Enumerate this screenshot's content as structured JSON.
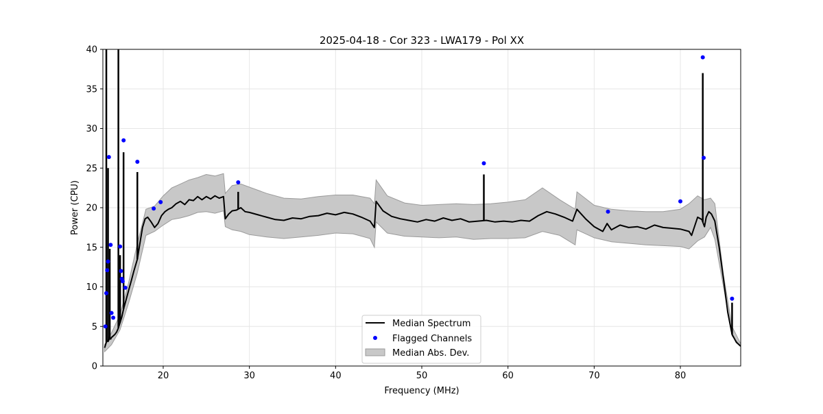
{
  "chart_data": {
    "type": "line",
    "title": "2025-04-18 - Cor 323 - LWA179 - Pol XX",
    "xlabel": "Frequency (MHz)",
    "ylabel": "Power (CPU)",
    "xlim": [
      13,
      87
    ],
    "ylim": [
      0,
      40
    ],
    "xticks": [
      20,
      30,
      40,
      50,
      60,
      70,
      80
    ],
    "yticks": [
      0,
      5,
      10,
      15,
      20,
      25,
      30,
      35,
      40
    ],
    "grid": true,
    "legend_position": "lower center",
    "colors": {
      "median": "#000000",
      "flagged": "#0000ff",
      "mad_fill": "#c8c8c8",
      "mad_edge": "#9a9a9a",
      "grid": "#e6e6e6"
    },
    "legend": [
      {
        "label": "Median Spectrum",
        "kind": "line"
      },
      {
        "label": "Flagged Channels",
        "kind": "marker"
      },
      {
        "label": "Median Abs. Dev.",
        "kind": "patch"
      }
    ],
    "median_spectrum": {
      "x": [
        13.2,
        13.4,
        13.5,
        13.6,
        13.7,
        13.8,
        13.9,
        14.0,
        14.2,
        14.4,
        14.6,
        14.8,
        15.0,
        15.2,
        15.4,
        15.6,
        15.8,
        16.0,
        16.3,
        16.6,
        17.0,
        17.3,
        17.6,
        17.9,
        18.2,
        18.6,
        19.0,
        19.4,
        19.8,
        20.2,
        20.6,
        21.0,
        21.5,
        22.0,
        22.5,
        23.0,
        23.5,
        24.0,
        24.5,
        25.0,
        25.5,
        26.0,
        26.5,
        27.0,
        27.2,
        27.6,
        28.0,
        28.5,
        29.0,
        29.5,
        30.0,
        31.0,
        32.0,
        33.0,
        34.0,
        35.0,
        36.0,
        37.0,
        38.0,
        39.0,
        40.0,
        41.0,
        42.0,
        43.0,
        44.0,
        44.5,
        44.7,
        45.5,
        46.5,
        47.5,
        48.5,
        49.5,
        50.5,
        51.5,
        52.5,
        53.5,
        54.5,
        55.5,
        56.5,
        57.5,
        58.5,
        59.5,
        60.5,
        61.5,
        62.5,
        63.5,
        64.5,
        65.5,
        66.5,
        67.5,
        68.0,
        69.0,
        70.0,
        71.0,
        71.5,
        72.0,
        73.0,
        74.0,
        75.0,
        76.0,
        77.0,
        78.0,
        79.0,
        80.0,
        81.0,
        81.3,
        82.0,
        82.5,
        82.8,
        83.0,
        83.3,
        83.6,
        84.0,
        84.5,
        85.0,
        85.5,
        86.0,
        86.5,
        87.0
      ],
      "y": [
        2.3,
        3.0,
        3.2,
        3.1,
        3.3,
        3.5,
        3.4,
        3.6,
        3.8,
        4.0,
        4.3,
        4.8,
        5.5,
        6.2,
        7.2,
        8.0,
        8.8,
        9.6,
        10.8,
        12.0,
        13.5,
        15.5,
        17.5,
        18.6,
        18.8,
        18.2,
        17.5,
        18.0,
        19.0,
        19.5,
        19.8,
        20.0,
        20.5,
        20.8,
        20.4,
        21.0,
        20.9,
        21.4,
        21.0,
        21.4,
        21.1,
        21.5,
        21.2,
        21.4,
        18.6,
        19.2,
        19.6,
        19.7,
        20.0,
        19.5,
        19.4,
        19.1,
        18.8,
        18.5,
        18.4,
        18.7,
        18.6,
        18.9,
        19.0,
        19.3,
        19.1,
        19.4,
        19.2,
        18.8,
        18.3,
        17.5,
        20.8,
        19.6,
        18.9,
        18.6,
        18.4,
        18.2,
        18.5,
        18.3,
        18.7,
        18.4,
        18.6,
        18.2,
        18.3,
        18.4,
        18.2,
        18.3,
        18.2,
        18.4,
        18.3,
        19.0,
        19.5,
        19.2,
        18.8,
        18.3,
        19.8,
        18.6,
        17.6,
        17.0,
        18.0,
        17.2,
        17.8,
        17.5,
        17.6,
        17.3,
        17.8,
        17.5,
        17.4,
        17.3,
        17.0,
        16.5,
        18.8,
        18.5,
        17.6,
        18.8,
        19.5,
        19.2,
        18.3,
        15.0,
        11.0,
        6.8,
        4.0,
        3.0,
        2.5
      ],
      "spikes": [
        {
          "x": 13.4,
          "y": 40.0
        },
        {
          "x": 13.6,
          "y": 25.0
        },
        {
          "x": 13.8,
          "y": 14.8
        },
        {
          "x": 14.8,
          "y": 40.0
        },
        {
          "x": 15.0,
          "y": 14.0
        },
        {
          "x": 15.4,
          "y": 27.0
        },
        {
          "x": 17.0,
          "y": 24.5
        },
        {
          "x": 28.7,
          "y": 22.0
        },
        {
          "x": 57.2,
          "y": 24.2
        },
        {
          "x": 82.6,
          "y": 37.0
        },
        {
          "x": 86.0,
          "y": 8.0
        }
      ]
    },
    "median_abs_dev": {
      "x": [
        13.2,
        14.0,
        15.0,
        16.0,
        17.0,
        18.0,
        19.0,
        20.0,
        21.0,
        22.0,
        23.0,
        24.0,
        25.0,
        26.0,
        27.0,
        27.2,
        28.0,
        29.0,
        30.0,
        32.0,
        34.0,
        36.0,
        38.0,
        40.0,
        42.0,
        44.0,
        44.5,
        44.7,
        46.0,
        48.0,
        50.0,
        52.0,
        54.0,
        56.0,
        58.0,
        60.0,
        62.0,
        64.0,
        66.0,
        67.8,
        68.0,
        70.0,
        72.0,
        74.0,
        76.0,
        78.0,
        80.0,
        81.0,
        82.0,
        82.8,
        83.5,
        84.0,
        85.0,
        86.0,
        87.0
      ],
      "lower": [
        1.8,
        2.7,
        4.6,
        8.0,
        11.8,
        16.5,
        17.0,
        17.8,
        18.5,
        18.7,
        19.0,
        19.4,
        19.5,
        19.3,
        19.6,
        17.6,
        17.2,
        17.0,
        16.6,
        16.3,
        16.1,
        16.3,
        16.5,
        16.8,
        16.7,
        16.1,
        15.0,
        18.2,
        16.8,
        16.4,
        16.3,
        16.2,
        16.3,
        16.0,
        16.1,
        16.1,
        16.2,
        17.0,
        16.5,
        15.3,
        17.2,
        16.2,
        15.7,
        15.5,
        15.3,
        15.2,
        15.1,
        14.8,
        15.8,
        16.3,
        17.5,
        16.0,
        10.0,
        3.8,
        2.5
      ],
      "upper": [
        2.7,
        4.2,
        6.5,
        10.6,
        15.5,
        19.8,
        20.2,
        21.5,
        22.5,
        23.0,
        23.5,
        23.8,
        24.2,
        24.0,
        24.3,
        21.8,
        22.8,
        23.0,
        22.6,
        21.8,
        21.2,
        21.1,
        21.4,
        21.6,
        21.6,
        21.2,
        20.5,
        23.5,
        21.5,
        20.6,
        20.3,
        20.4,
        20.5,
        20.4,
        20.5,
        20.7,
        21.0,
        22.5,
        21.0,
        19.8,
        22.0,
        20.3,
        19.8,
        19.6,
        19.5,
        19.5,
        19.8,
        20.5,
        21.5,
        21.0,
        21.2,
        20.5,
        11.5,
        5.0,
        2.8
      ]
    },
    "flagged_channels": {
      "x": [
        13.3,
        13.4,
        13.5,
        13.6,
        13.7,
        13.9,
        14.0,
        14.2,
        15.0,
        15.1,
        15.2,
        15.3,
        15.4,
        15.6,
        17.0,
        18.9,
        19.7,
        28.7,
        57.2,
        71.6,
        80.0,
        82.6,
        82.7,
        86.0
      ],
      "y": [
        5.0,
        9.2,
        12.1,
        13.2,
        26.4,
        15.3,
        6.7,
        6.1,
        15.1,
        12.0,
        11.0,
        10.7,
        28.5,
        9.9,
        25.8,
        19.9,
        20.7,
        23.2,
        25.6,
        19.5,
        20.8,
        39.0,
        26.3,
        8.5
      ]
    }
  }
}
